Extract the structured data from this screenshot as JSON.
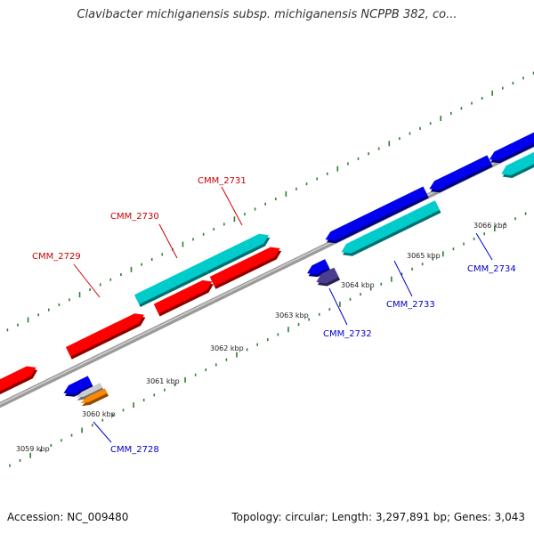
{
  "title": "Clavibacter michiganensis subsp. michiganensis NCPPB 382, co...",
  "footer": {
    "accession": "Accession: NC_009480",
    "summary": "Topology: circular; Length: 3,297,891 bp; Genes: 3,043"
  },
  "map": {
    "units": "kbp",
    "colors": {
      "backbone": "#808080",
      "tick_major": "#2e7d32",
      "tick_minor": "#2e7d32",
      "label_top": "#cc0000",
      "label_bottom": "#0000cc"
    },
    "scale_ticks": [
      {
        "label": "3059 kbp",
        "kbp": 3059
      },
      {
        "label": "3060 kbp",
        "kbp": 3060
      },
      {
        "label": "3061 kbp",
        "kbp": 3061
      },
      {
        "label": "3062 kbp",
        "kbp": 3062
      },
      {
        "label": "3063 kbp",
        "kbp": 3063
      },
      {
        "label": "3064 kbp",
        "kbp": 3064
      },
      {
        "label": "3065 kbp",
        "kbp": 3065
      },
      {
        "label": "3066 kbp",
        "kbp": 3066
      }
    ],
    "features": [
      {
        "id": "f1",
        "strand": "+",
        "color": "#ff0000"
      },
      {
        "id": "f2",
        "strand": "+",
        "color": "#ff0000"
      },
      {
        "id": "f3",
        "strand": "+",
        "color": "#ff0000"
      },
      {
        "id": "f4",
        "strand": "+",
        "color": "#ff0000"
      },
      {
        "id": "f5",
        "strand": "+",
        "color": "#00cccc"
      },
      {
        "id": "f6",
        "strand": "-",
        "color": "#0000ee"
      },
      {
        "id": "f7",
        "strand": "-",
        "color": "#cccccc"
      },
      {
        "id": "f8",
        "strand": "-",
        "color": "#ff8800"
      },
      {
        "id": "f9",
        "strand": "-",
        "color": "#0000ee"
      },
      {
        "id": "f10",
        "strand": "-",
        "color": "#4b3d8f"
      },
      {
        "id": "f11",
        "strand": "-",
        "color": "#0000ee"
      },
      {
        "id": "f12",
        "strand": "-",
        "color": "#00cccc"
      },
      {
        "id": "f13",
        "strand": "-",
        "color": "#0000ee"
      },
      {
        "id": "f14",
        "strand": "-",
        "color": "#0000ee"
      },
      {
        "id": "f15",
        "strand": "-",
        "color": "#00cccc"
      }
    ],
    "gene_labels_top": [
      {
        "text": "CMM_2729"
      },
      {
        "text": "CMM_2730"
      },
      {
        "text": "CMM_2731"
      }
    ],
    "gene_labels_bottom": [
      {
        "text": "CMM_2728"
      },
      {
        "text": "CMM_2732"
      },
      {
        "text": "CMM_2733"
      },
      {
        "text": "CMM_2734"
      }
    ]
  }
}
